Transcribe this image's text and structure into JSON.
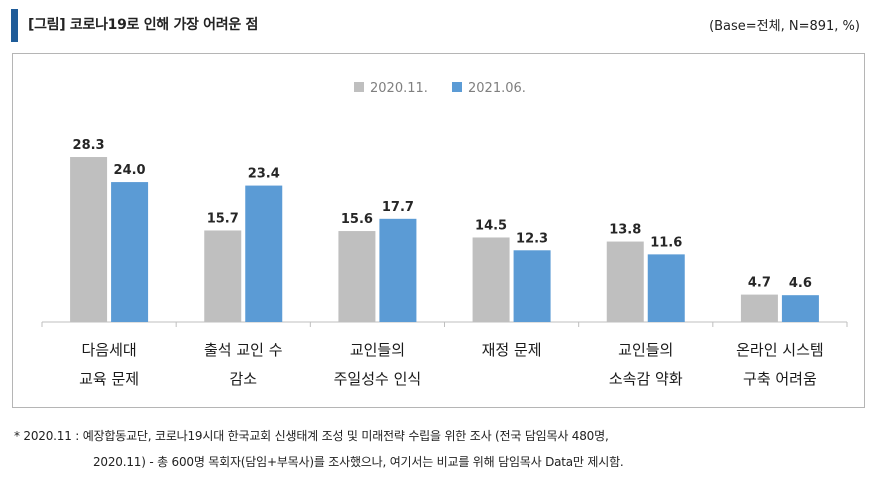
{
  "header": {
    "title": "[그림] 코로나19로 인해 가장 어려운 점",
    "base_note": "(Base=전체, N=891, %)",
    "accent_color": "#1f5c99"
  },
  "chart_data": {
    "type": "bar",
    "categories": [
      [
        "다음세대",
        "교육 문제"
      ],
      [
        "출석 교인 수",
        "감소"
      ],
      [
        "교인들의",
        "주일성수 인식"
      ],
      [
        "재정 문제"
      ],
      [
        "교인들의",
        "소속감 약화"
      ],
      [
        "온라인 시스템",
        "구축 어려움"
      ]
    ],
    "series": [
      {
        "name": "2020.11.",
        "color": "#bfbfbf",
        "values": [
          28.3,
          15.7,
          15.6,
          14.5,
          13.8,
          4.7
        ],
        "labels": [
          "28.3",
          "15.7",
          "15.6",
          "14.5",
          "13.8",
          "4.7"
        ]
      },
      {
        "name": "2021.06.",
        "color": "#5b9bd5",
        "values": [
          24.0,
          23.4,
          17.7,
          12.3,
          11.6,
          4.6
        ],
        "labels": [
          "24.0",
          "23.4",
          "17.7",
          "12.3",
          "11.6",
          "4.6"
        ]
      }
    ],
    "ylim": [
      0,
      35
    ],
    "legend_position": "top-center",
    "grid": false
  },
  "footnote": {
    "line1": "* 2020.11 : 예장합동교단, 코로나19시대 한국교회 신생태계 조성 및 미래전략 수립을 위한 조사 (전국 담임목사 480명,",
    "line2": "2020.11) - 총 600명 목회자(담임+부목사)를 조사했으나, 여기서는 비교를 위해 담임목사 Data만 제시함."
  }
}
